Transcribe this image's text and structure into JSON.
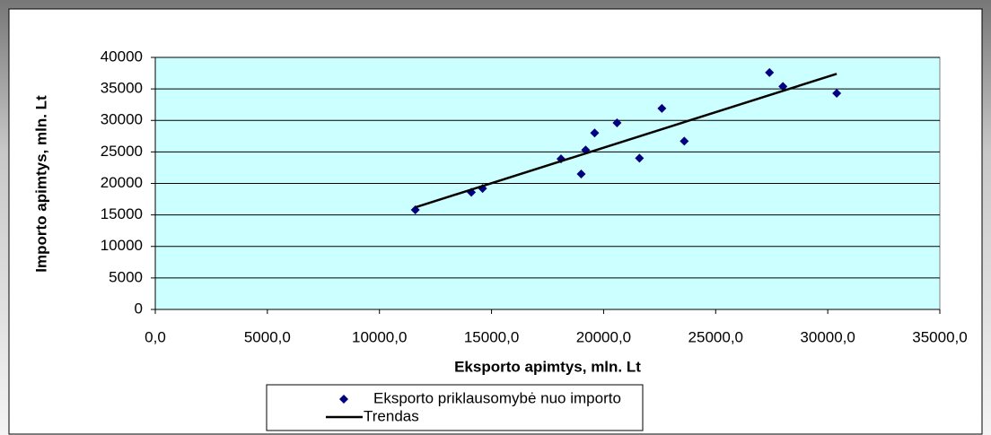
{
  "chart_data": {
    "type": "scatter",
    "xlabel": "Eksporto apimtys, mln. Lt",
    "ylabel": "Importo apimtys, mln. Lt",
    "xlim": [
      0,
      35000
    ],
    "xticks": [
      {
        "value": 0,
        "label": "0,0"
      },
      {
        "value": 5000,
        "label": "5000,0"
      },
      {
        "value": 10000,
        "label": "10000,0"
      },
      {
        "value": 15000,
        "label": "15000,0"
      },
      {
        "value": 20000,
        "label": "20000,0"
      },
      {
        "value": 25000,
        "label": "25000,0"
      },
      {
        "value": 30000,
        "label": "30000,0"
      },
      {
        "value": 35000,
        "label": "35000,0"
      }
    ],
    "ylim": [
      0,
      40000
    ],
    "yticks": [
      0,
      5000,
      10000,
      15000,
      20000,
      25000,
      30000,
      35000,
      40000
    ],
    "grid": true,
    "legend": "bottom",
    "series": [
      {
        "name": "Eksporto priklausomybė nuo importo",
        "type": "scatter",
        "color": "#000080",
        "x": [
          11600,
          14100,
          14600,
          18100,
          19000,
          19200,
          19600,
          20600,
          21600,
          22600,
          23600,
          27400,
          28000,
          30400
        ],
        "values": [
          15800,
          18600,
          19200,
          23900,
          21500,
          25300,
          28000,
          29600,
          24000,
          31900,
          26700,
          37600,
          35400,
          34300
        ]
      },
      {
        "name": "Trendas",
        "type": "line",
        "color": "#000000",
        "x": [
          11600,
          30400
        ],
        "values": [
          16200,
          37400
        ]
      }
    ]
  }
}
